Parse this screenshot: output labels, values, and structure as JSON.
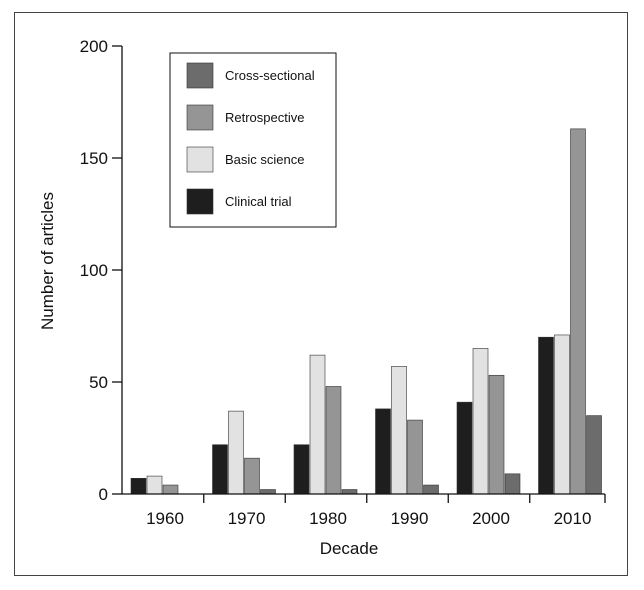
{
  "chart_data": {
    "type": "bar",
    "title": "",
    "xlabel": "Decade",
    "ylabel": "Number of articles",
    "ylim": [
      0,
      200
    ],
    "yticks": [
      0,
      50,
      100,
      150,
      200
    ],
    "categories": [
      "1960",
      "1970",
      "1980",
      "1990",
      "2000",
      "2010"
    ],
    "series": [
      {
        "name": "Clinical trial",
        "color": "#1e1e1e",
        "values": [
          7,
          22,
          22,
          38,
          41,
          70
        ]
      },
      {
        "name": "Basic science",
        "color": "#e2e2e2",
        "values": [
          8,
          37,
          62,
          57,
          65,
          71
        ]
      },
      {
        "name": "Retrospective",
        "color": "#959595",
        "values": [
          4,
          16,
          48,
          33,
          53,
          163
        ]
      },
      {
        "name": "Cross-sectional",
        "color": "#6c6c6c",
        "values": [
          0,
          2,
          2,
          4,
          9,
          35
        ]
      }
    ],
    "legend": {
      "placement": "top-left",
      "order": [
        "Cross-sectional",
        "Retrospective",
        "Basic science",
        "Clinical trial"
      ]
    },
    "grid": false
  }
}
